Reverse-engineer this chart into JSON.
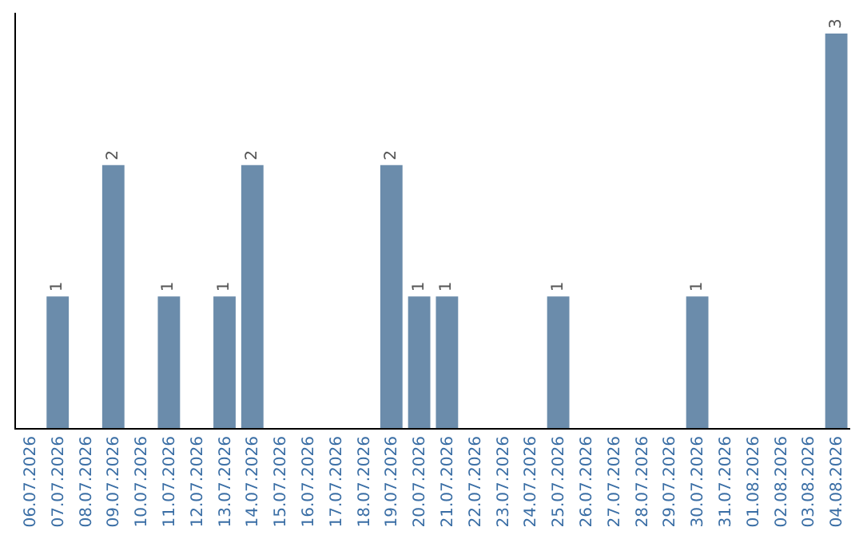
{
  "chart_data": {
    "type": "bar",
    "categories": [
      "06.07.2026",
      "07.07.2026",
      "08.07.2026",
      "09.07.2026",
      "10.07.2026",
      "11.07.2026",
      "12.07.2026",
      "13.07.2026",
      "14.07.2026",
      "15.07.2026",
      "16.07.2026",
      "17.07.2026",
      "18.07.2026",
      "19.07.2026",
      "20.07.2026",
      "21.07.2026",
      "22.07.2026",
      "23.07.2026",
      "24.07.2026",
      "25.07.2026",
      "26.07.2026",
      "27.07.2026",
      "28.07.2026",
      "29.07.2026",
      "30.07.2026",
      "31.07.2026",
      "01.08.2026",
      "02.08.2026",
      "03.08.2026",
      "04.08.2026"
    ],
    "values": [
      0,
      1,
      0,
      2,
      0,
      1,
      0,
      1,
      2,
      0,
      0,
      0,
      0,
      2,
      1,
      1,
      0,
      0,
      0,
      1,
      0,
      0,
      0,
      0,
      1,
      0,
      0,
      0,
      0,
      3
    ],
    "value_labels": [
      null,
      "1",
      null,
      "2",
      null,
      "1",
      null,
      "1",
      "2",
      null,
      null,
      null,
      null,
      "2",
      "1",
      "1",
      null,
      null,
      null,
      "1",
      null,
      null,
      null,
      null,
      "1",
      null,
      null,
      null,
      null,
      "3"
    ],
    "color": "#6b8cab",
    "grid": false,
    "legend": false
  }
}
